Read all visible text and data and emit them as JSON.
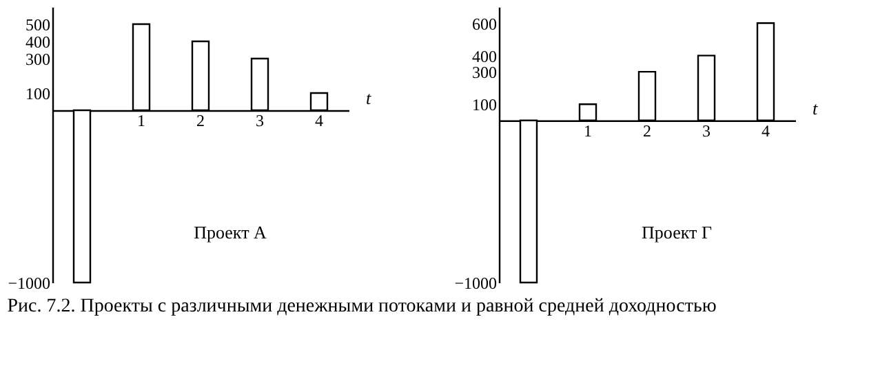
{
  "chart_data": [
    {
      "type": "bar",
      "categories": [
        null,
        "1",
        "2",
        "3",
        "4"
      ],
      "values": [
        -1000,
        500,
        400,
        300,
        100
      ],
      "color": "#ffffff",
      "xlabel": "t",
      "ylim": [
        -1000,
        600
      ],
      "yticks": [
        -1000,
        100,
        300,
        400,
        500
      ],
      "grid": false,
      "annotations": [
        "Проект А",
        "Рис. 7.2. Проекты с различными денежными потоками и равной средней доходностью"
      ]
    },
    {
      "type": "bar",
      "categories": [
        null,
        "1",
        "2",
        "3",
        "4"
      ],
      "values": [
        -1000,
        100,
        300,
        400,
        600
      ],
      "color": "#ffffff",
      "xlabel": "t",
      "ylim": [
        -1000,
        700
      ],
      "yticks": [
        -1000,
        100,
        300,
        400,
        600
      ],
      "grid": false,
      "annotations": [
        "Проект Г"
      ]
    }
  ]
}
